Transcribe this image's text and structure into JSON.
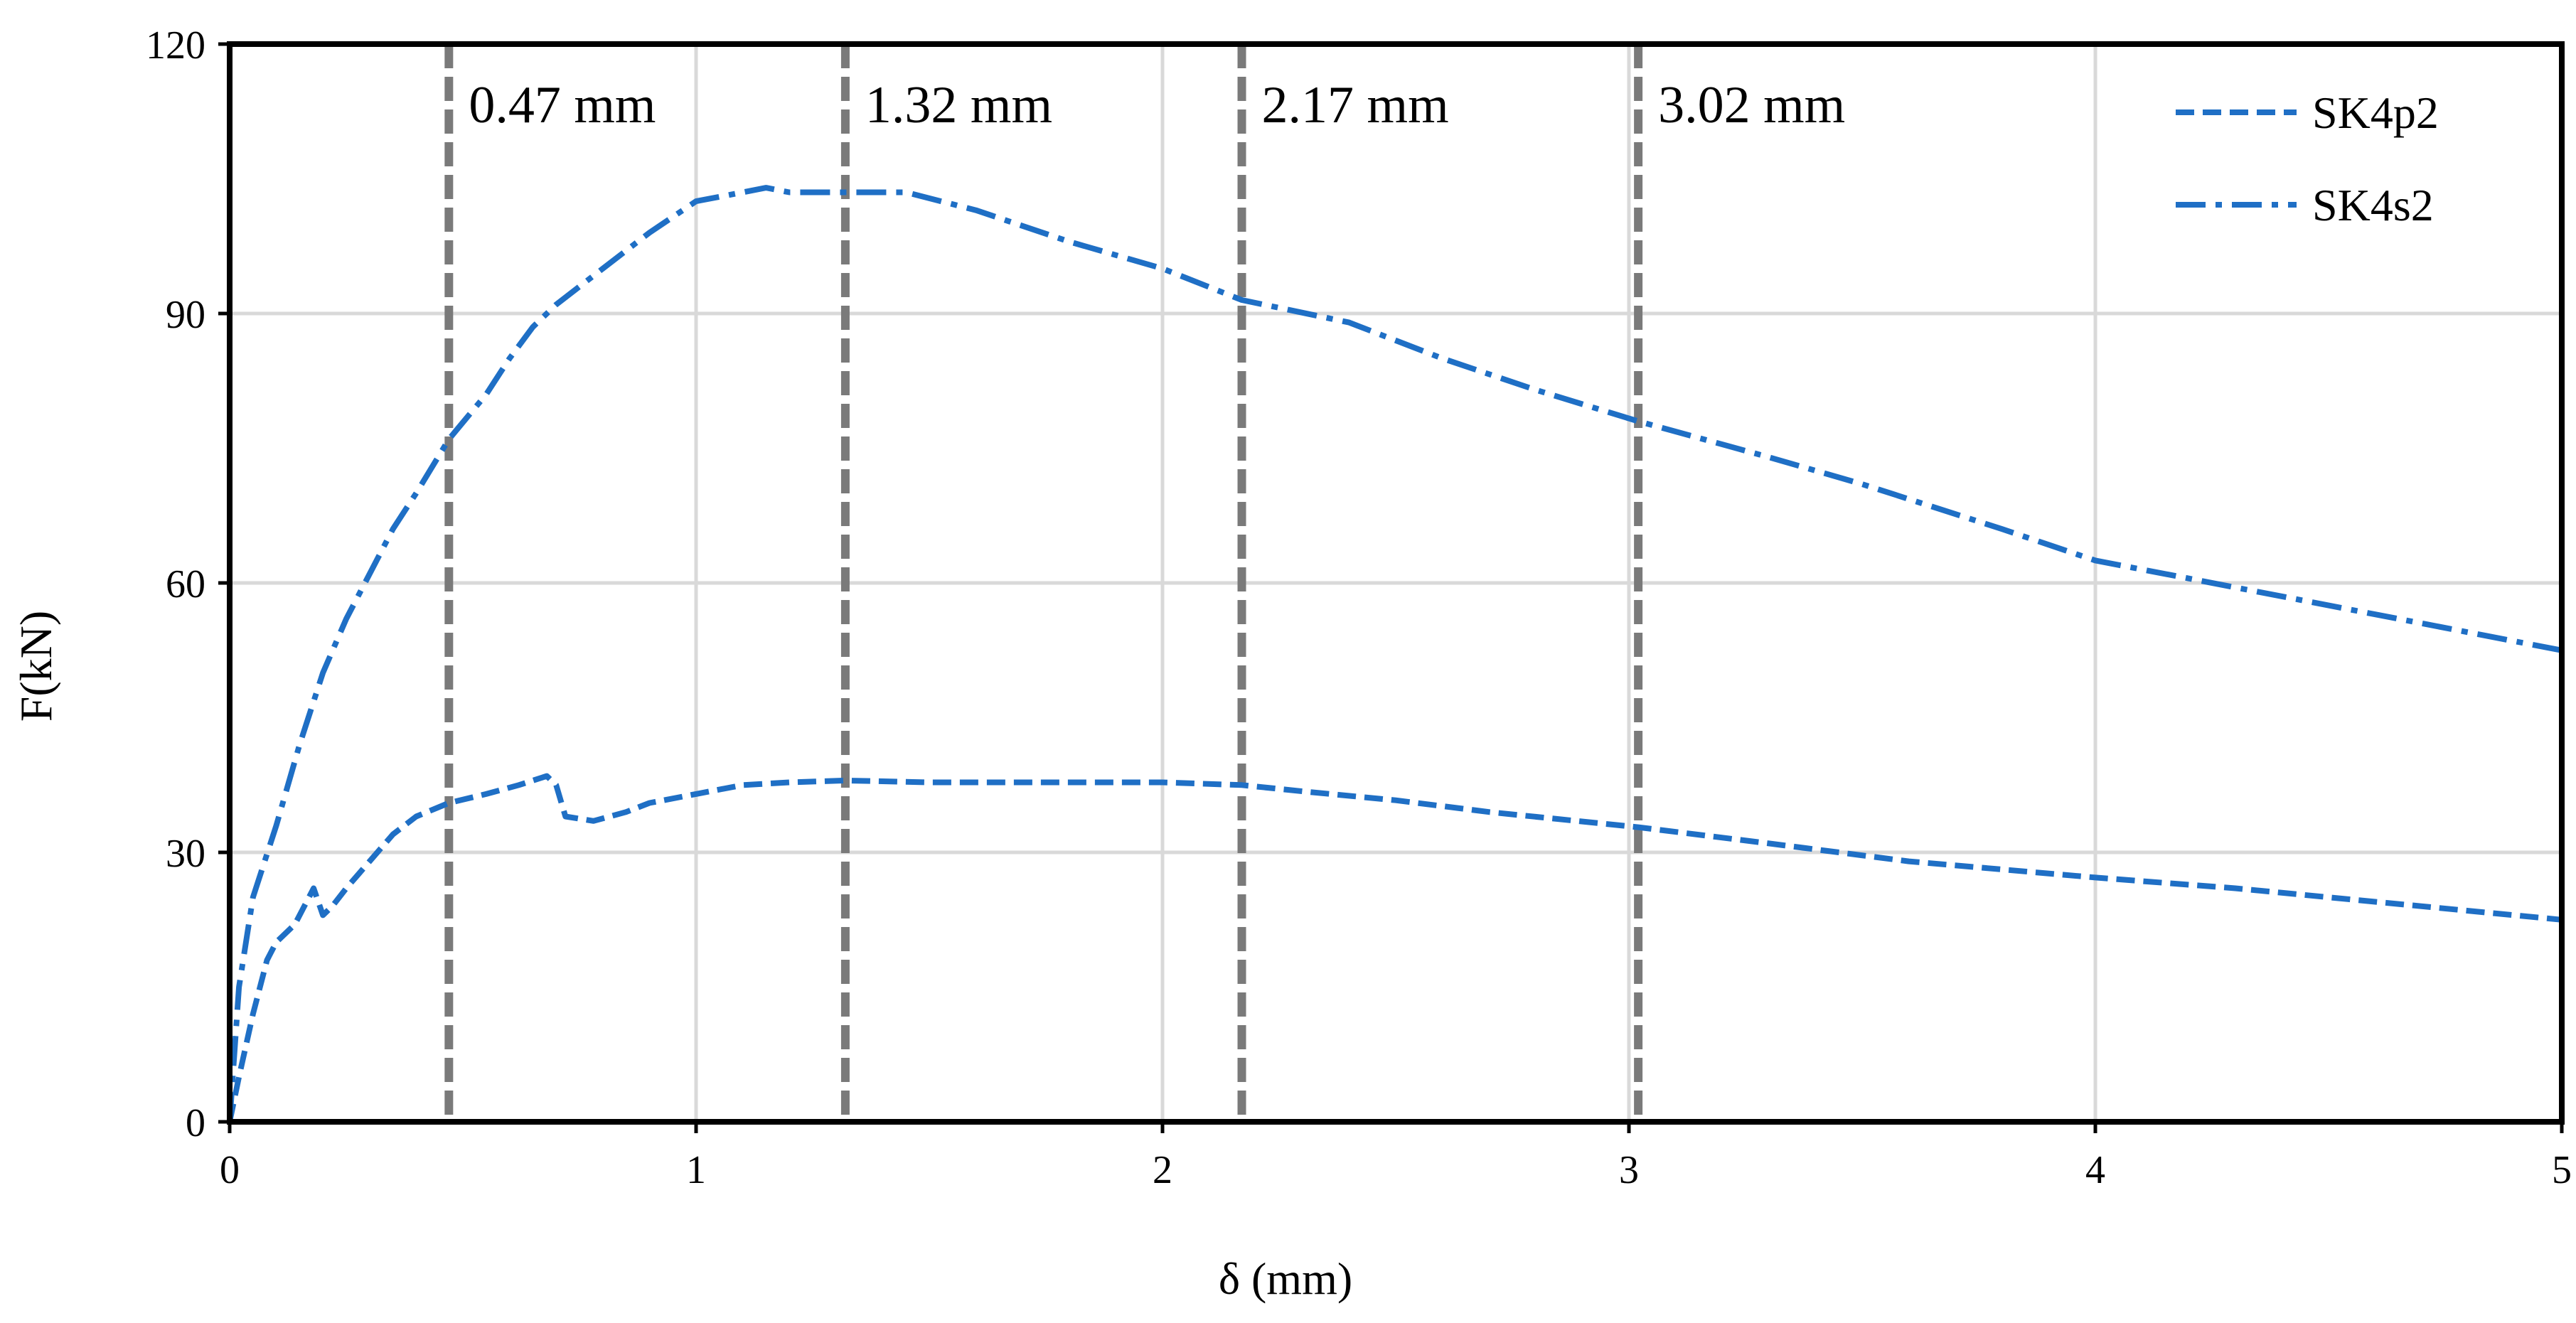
{
  "chart_data": {
    "type": "line",
    "title": "",
    "xlabel": "δ (mm)",
    "ylabel": "F(kN)",
    "xlim": [
      0,
      5
    ],
    "ylim": [
      0,
      120
    ],
    "xticks": [
      0,
      1,
      2,
      3,
      4,
      5
    ],
    "yticks": [
      0,
      30,
      60,
      90,
      120
    ],
    "grid": true,
    "legend_position": "top-right",
    "colors": {
      "series": "#1f6fc5",
      "reference_lines": "#7a7a7a",
      "grid": "#d9d9d9",
      "axes": "#000000"
    },
    "reference_lines": [
      {
        "x": 0.47,
        "label": "0.47 mm"
      },
      {
        "x": 1.32,
        "label": "1.32 mm"
      },
      {
        "x": 2.17,
        "label": "2.17 mm"
      },
      {
        "x": 3.02,
        "label": "3.02 mm"
      }
    ],
    "series": [
      {
        "name": "SK4p2",
        "style": "dashed",
        "x": [
          0,
          0.02,
          0.05,
          0.08,
          0.1,
          0.14,
          0.18,
          0.2,
          0.22,
          0.25,
          0.3,
          0.35,
          0.4,
          0.47,
          0.55,
          0.62,
          0.68,
          0.7,
          0.72,
          0.78,
          0.85,
          0.9,
          1.0,
          1.1,
          1.2,
          1.32,
          1.5,
          1.7,
          2.0,
          2.17,
          2.3,
          2.5,
          2.7,
          3.02,
          3.3,
          3.6,
          4.0,
          4.3,
          4.6,
          5.0
        ],
        "y": [
          0,
          5,
          12,
          18,
          20,
          22,
          26,
          23,
          24,
          26,
          29,
          32,
          34,
          35.5,
          36.5,
          37.5,
          38.5,
          37.5,
          34,
          33.5,
          34.5,
          35.5,
          36.5,
          37.5,
          37.8,
          38,
          37.8,
          37.8,
          37.8,
          37.5,
          36.8,
          35.8,
          34.5,
          32.8,
          31,
          29,
          27.2,
          26,
          24.5,
          22.5
        ]
      },
      {
        "name": "SK4s2",
        "style": "dash-dot",
        "x": [
          0,
          0.02,
          0.05,
          0.1,
          0.15,
          0.2,
          0.25,
          0.3,
          0.35,
          0.4,
          0.47,
          0.55,
          0.6,
          0.65,
          0.7,
          0.8,
          0.9,
          1.0,
          1.05,
          1.1,
          1.15,
          1.2,
          1.32,
          1.45,
          1.6,
          1.8,
          2.0,
          2.17,
          2.4,
          2.6,
          2.8,
          3.02,
          3.3,
          3.5,
          3.8,
          4.0,
          4.3,
          4.6,
          5.0
        ],
        "y": [
          0,
          15,
          25,
          33,
          42,
          50,
          56,
          61,
          66,
          70,
          76,
          81,
          85,
          88.5,
          91,
          95,
          99,
          102.5,
          103,
          103.5,
          104,
          103.5,
          103.5,
          103.5,
          101.5,
          98,
          95,
          91.5,
          89,
          85,
          81.5,
          78,
          74,
          71,
          66,
          62.5,
          59.5,
          56.5,
          52.5
        ]
      }
    ]
  }
}
